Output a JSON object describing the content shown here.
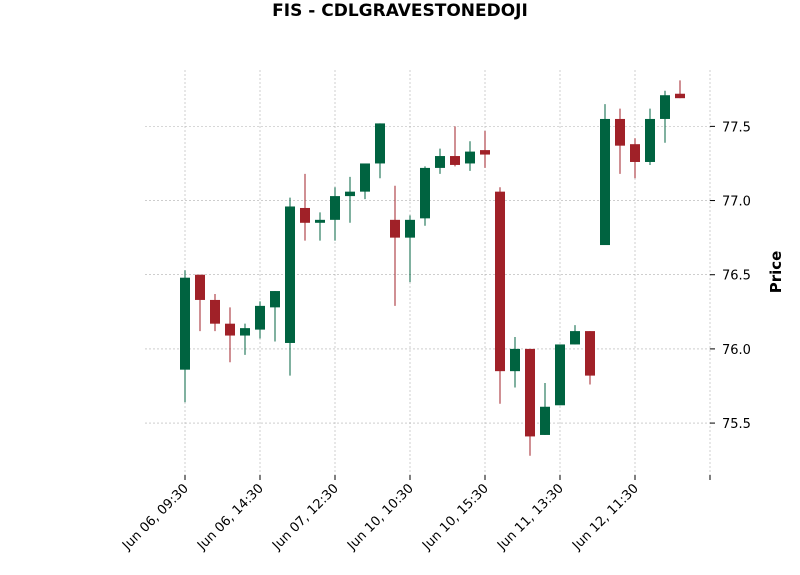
{
  "chart_data": {
    "type": "candlestick",
    "title": "FIS - CDLGRAVESTONEDOJI",
    "ylabel": "Price",
    "xlabel": "",
    "ylim": [
      75.15,
      77.88
    ],
    "yticks": [
      75.5,
      76.0,
      76.5,
      77.0,
      77.5
    ],
    "ytick_labels": [
      "75.5",
      "76.0",
      "76.5",
      "77.0",
      "77.5"
    ],
    "xtick_labels": [
      "Jun 06, 09:30",
      "Jun 06, 14:30",
      "Jun 07, 12:30",
      "Jun 10, 10:30",
      "Jun 10, 15:30",
      "Jun 11, 13:30",
      "Jun 12, 11:30"
    ],
    "xtick_positions": [
      0,
      5,
      10,
      15,
      20,
      25,
      30,
      35
    ],
    "grid": true,
    "colors": {
      "up": "#006340",
      "down": "#a02128",
      "grid": "#b0b0b0"
    },
    "candles": [
      {
        "o": 75.86,
        "h": 76.53,
        "l": 75.64,
        "c": 76.48
      },
      {
        "o": 76.5,
        "h": 76.5,
        "l": 76.12,
        "c": 76.33
      },
      {
        "o": 76.33,
        "h": 76.37,
        "l": 76.12,
        "c": 76.17
      },
      {
        "o": 76.17,
        "h": 76.28,
        "l": 75.91,
        "c": 76.09
      },
      {
        "o": 76.09,
        "h": 76.17,
        "l": 75.96,
        "c": 76.14
      },
      {
        "o": 76.13,
        "h": 76.32,
        "l": 76.07,
        "c": 76.29
      },
      {
        "o": 76.28,
        "h": 76.39,
        "l": 76.05,
        "c": 76.39
      },
      {
        "o": 76.04,
        "h": 77.02,
        "l": 75.82,
        "c": 76.96
      },
      {
        "o": 76.95,
        "h": 77.18,
        "l": 76.73,
        "c": 76.85
      },
      {
        "o": 76.85,
        "h": 76.92,
        "l": 76.73,
        "c": 76.87
      },
      {
        "o": 76.87,
        "h": 77.09,
        "l": 76.73,
        "c": 77.03
      },
      {
        "o": 77.03,
        "h": 77.16,
        "l": 76.85,
        "c": 77.06
      },
      {
        "o": 77.06,
        "h": 77.25,
        "l": 77.01,
        "c": 77.25
      },
      {
        "o": 77.25,
        "h": 77.52,
        "l": 77.15,
        "c": 77.52
      },
      {
        "o": 76.87,
        "h": 77.1,
        "l": 76.29,
        "c": 76.75
      },
      {
        "o": 76.75,
        "h": 76.9,
        "l": 76.45,
        "c": 76.87
      },
      {
        "o": 76.88,
        "h": 77.23,
        "l": 76.83,
        "c": 77.22
      },
      {
        "o": 77.22,
        "h": 77.35,
        "l": 77.18,
        "c": 77.3
      },
      {
        "o": 77.3,
        "h": 77.5,
        "l": 77.23,
        "c": 77.24
      },
      {
        "o": 77.25,
        "h": 77.4,
        "l": 77.2,
        "c": 77.33
      },
      {
        "o": 77.34,
        "h": 77.47,
        "l": 77.22,
        "c": 77.31
      },
      {
        "o": 77.06,
        "h": 77.09,
        "l": 75.63,
        "c": 75.85
      },
      {
        "o": 75.85,
        "h": 76.08,
        "l": 75.74,
        "c": 76.0
      },
      {
        "o": 76.0,
        "h": 76.0,
        "l": 75.28,
        "c": 75.41
      },
      {
        "o": 75.42,
        "h": 75.77,
        "l": 75.42,
        "c": 75.61
      },
      {
        "o": 75.62,
        "h": 76.03,
        "l": 75.62,
        "c": 76.03
      },
      {
        "o": 76.03,
        "h": 76.16,
        "l": 76.03,
        "c": 76.12
      },
      {
        "o": 76.12,
        "h": 76.12,
        "l": 75.76,
        "c": 75.82
      },
      {
        "o": 76.7,
        "h": 77.65,
        "l": 76.7,
        "c": 77.55
      },
      {
        "o": 77.55,
        "h": 77.62,
        "l": 77.18,
        "c": 77.37
      },
      {
        "o": 77.38,
        "h": 77.42,
        "l": 77.15,
        "c": 77.26
      },
      {
        "o": 77.26,
        "h": 77.62,
        "l": 77.24,
        "c": 77.55
      },
      {
        "o": 77.55,
        "h": 77.74,
        "l": 77.39,
        "c": 77.71
      },
      {
        "o": 77.72,
        "h": 77.81,
        "l": 77.69,
        "c": 77.69
      }
    ]
  }
}
